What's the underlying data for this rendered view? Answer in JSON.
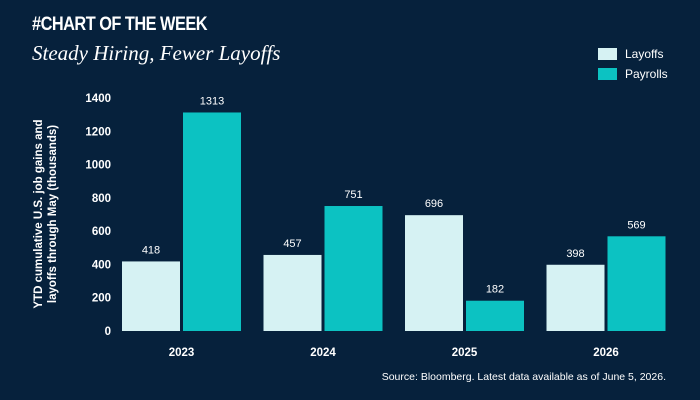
{
  "header": {
    "tag": "#CHART OF THE WEEK",
    "title": "Steady Hiring, Fewer Layoffs"
  },
  "source": "Source: Bloomberg. Latest data available as of June 5, 2026.",
  "colors": {
    "background": "#06213c",
    "layoffs": "#d6f2f3",
    "payrolls": "#0cc2c2",
    "text": "#ffffff"
  },
  "chart_data": {
    "type": "bar",
    "title": "Steady Hiring, Fewer Layoffs",
    "xlabel": "",
    "ylabel": "YTD cumulative U.S. job gains and\nlayoffs through May (thousands)",
    "categories": [
      "2023",
      "2024",
      "2025",
      "2026"
    ],
    "series": [
      {
        "name": "Layoffs",
        "values": [
          418,
          457,
          696,
          398
        ]
      },
      {
        "name": "Payrolls",
        "values": [
          1313,
          751,
          182,
          569
        ]
      }
    ],
    "ylim": [
      0,
      1400
    ],
    "yticks": [
      "0",
      "200",
      "400",
      "600",
      "800",
      "1000",
      "1200",
      "1400"
    ],
    "data_labels": true,
    "grid": false,
    "legend_position": "top-right"
  }
}
